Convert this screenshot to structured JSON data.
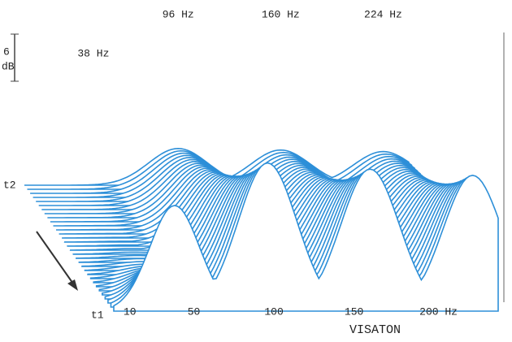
{
  "chart_data": {
    "type": "waterfall",
    "peaks": [
      {
        "value": 38,
        "label": "38 Hz"
      },
      {
        "value": 96,
        "label": "96 Hz"
      },
      {
        "value": 160,
        "label": "160 Hz"
      },
      {
        "value": 224,
        "label": "224 Hz"
      }
    ],
    "xlim": [
      0,
      240
    ],
    "xticks": [
      10,
      50,
      100,
      150,
      {
        "value": 200,
        "label": "200 Hz"
      }
    ],
    "time_start": "t1",
    "time_end": "t2",
    "scale_value": "6",
    "scale_unit": "dB",
    "brand": "VISATON",
    "color": "#2d8fd8"
  }
}
